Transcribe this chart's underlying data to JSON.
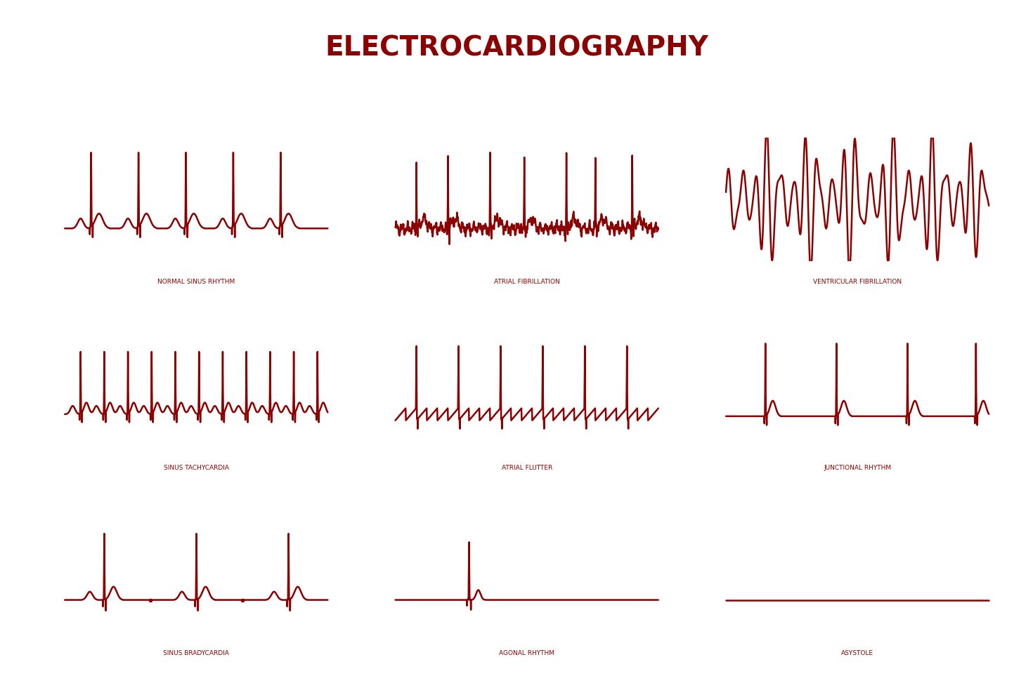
{
  "title": "ELECTROCARDIOGRAPHY",
  "title_color": "#8B0000",
  "title_fontsize": 28,
  "line_color": "#8B0000",
  "line_width": 1.8,
  "background_color": "#FFFFFF",
  "label_fontsize": 6.5,
  "label_color": "#8B0000",
  "labels": [
    "NORMAL SINUS RHYTHM",
    "ATRIAL FIBRILLATION",
    "VENTRICULAR FIBRILLATION",
    "SINUS TACHYCARDIA",
    "ATRIAL FLUTTER",
    "JUNCTIONAL RHYTHM",
    "SINUS BRADYCARDIA",
    "AGONAL RHYTHM",
    "ASYSTOLE"
  ]
}
